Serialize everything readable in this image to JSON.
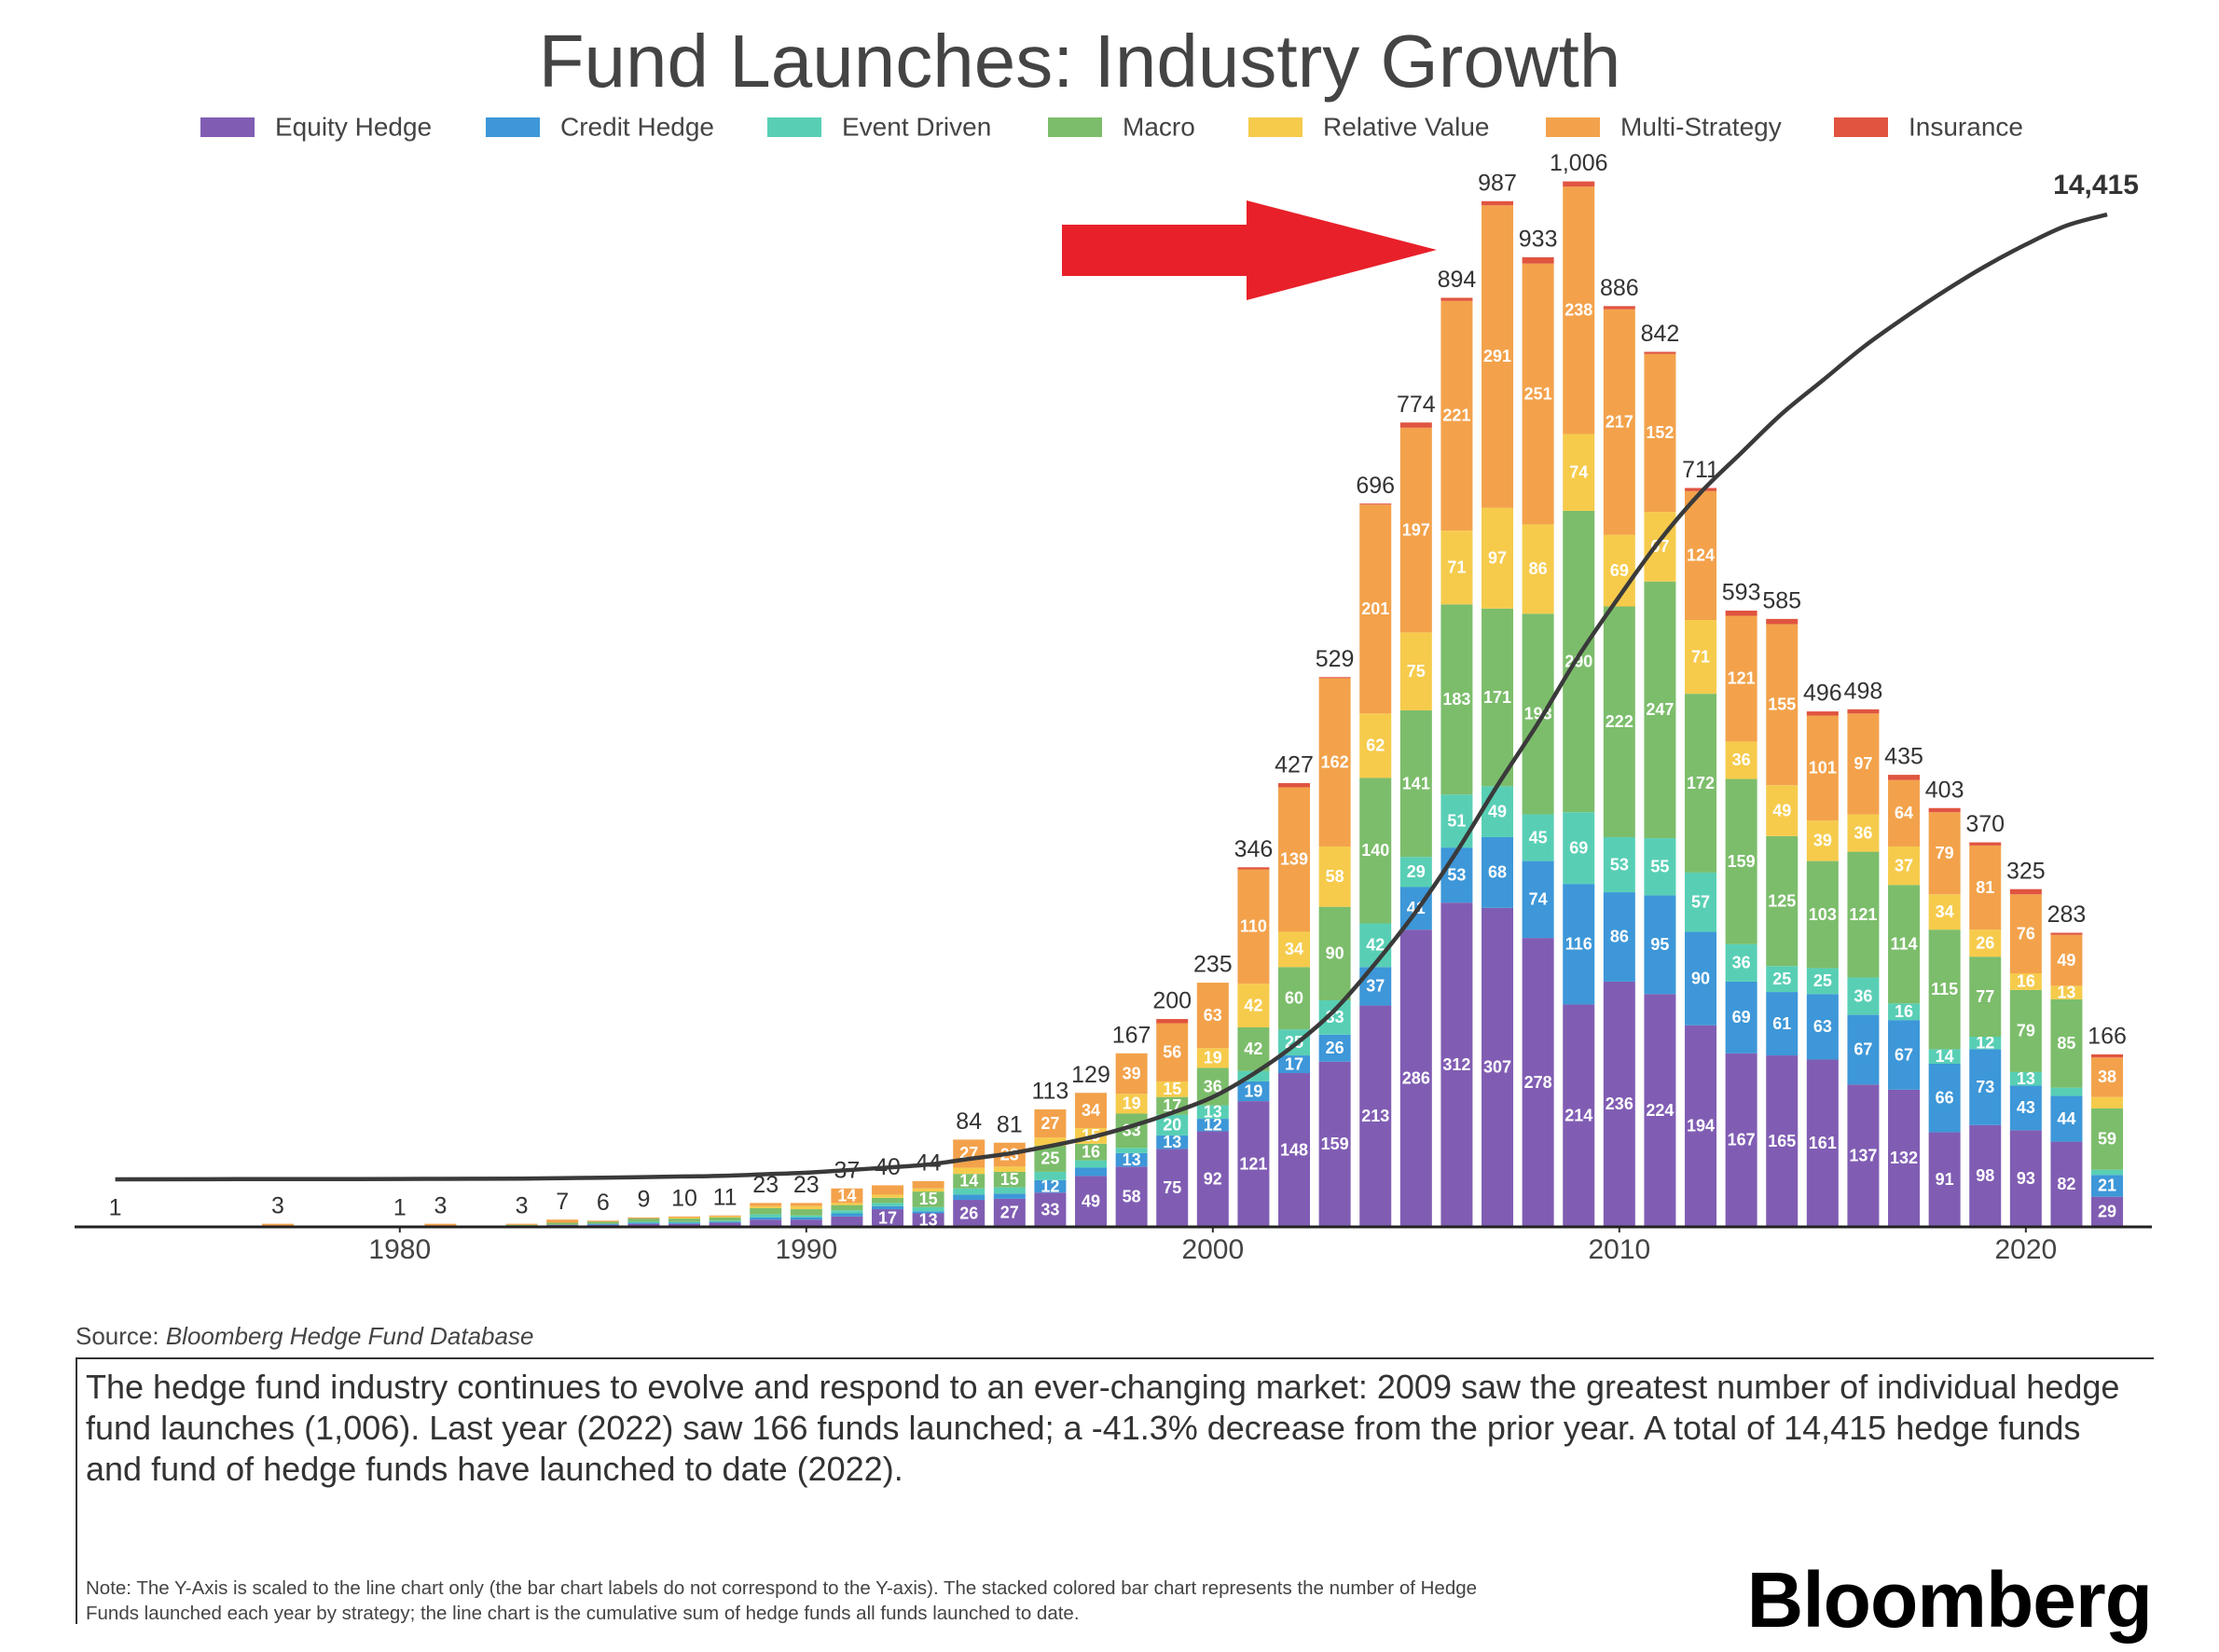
{
  "chart_data": {
    "type": "bar",
    "stacked": true,
    "title": "Fund Launches: Industry Growth",
    "legend_position": "top",
    "x": [
      1973,
      1977,
      1980,
      1981,
      1983,
      1984,
      1985,
      1986,
      1987,
      1988,
      1989,
      1990,
      1991,
      1992,
      1993,
      1994,
      1995,
      1996,
      1997,
      1998,
      1999,
      2000,
      2001,
      2002,
      2003,
      2004,
      2005,
      2006,
      2007,
      2008,
      2009,
      2010,
      2011,
      2012,
      2013,
      2014,
      2015,
      2016,
      2017,
      2018,
      2019,
      2020,
      2021,
      2022
    ],
    "xlim": [
      1972,
      2023.1
    ],
    "xticks": [
      1980,
      1990,
      2000,
      2010,
      2020
    ],
    "ylim": [
      0,
      1046
    ],
    "y2lim": [
      -710,
      15530
    ],
    "series": [
      {
        "name": "Equity Hedge",
        "color": "#805db3",
        "values": [
          1,
          0,
          1,
          0,
          1,
          2,
          2,
          3,
          3,
          4,
          7,
          7,
          10,
          17,
          13,
          26,
          27,
          33,
          49,
          58,
          75,
          92,
          121,
          148,
          159,
          213,
          286,
          312,
          307,
          278,
          214,
          236,
          224,
          194,
          167,
          165,
          161,
          137,
          132,
          91,
          98,
          93,
          82,
          29
        ]
      },
      {
        "name": "Credit Hedge",
        "color": "#3d97d8",
        "values": [
          0,
          0,
          0,
          0,
          0,
          0,
          1,
          1,
          1,
          1,
          2,
          2,
          3,
          3,
          2,
          5,
          5,
          12,
          8,
          13,
          13,
          12,
          19,
          17,
          26,
          37,
          41,
          53,
          68,
          74,
          116,
          86,
          95,
          90,
          69,
          61,
          63,
          67,
          67,
          66,
          73,
          43,
          44,
          21
        ]
      },
      {
        "name": "Event Driven",
        "color": "#58cfb5",
        "values": [
          0,
          0,
          0,
          0,
          0,
          0,
          0,
          1,
          1,
          1,
          3,
          2,
          3,
          3,
          4,
          6,
          6,
          8,
          7,
          5,
          20,
          13,
          10,
          25,
          33,
          42,
          29,
          51,
          49,
          45,
          69,
          53,
          55,
          57,
          36,
          25,
          25,
          36,
          16,
          14,
          12,
          13,
          8,
          5
        ]
      },
      {
        "name": "Macro",
        "color": "#7cbd6b",
        "values": [
          0,
          0,
          0,
          0,
          1,
          2,
          2,
          3,
          3,
          3,
          6,
          6,
          5,
          5,
          15,
          14,
          15,
          25,
          16,
          33,
          17,
          36,
          42,
          60,
          90,
          140,
          141,
          183,
          171,
          193,
          290,
          222,
          247,
          172,
          159,
          125,
          103,
          121,
          114,
          115,
          77,
          79,
          85,
          59
        ]
      },
      {
        "name": "Relative Value",
        "color": "#f6cb4c",
        "values": [
          0,
          0,
          0,
          0,
          0,
          0,
          0,
          0,
          1,
          1,
          2,
          3,
          2,
          3,
          3,
          6,
          5,
          8,
          15,
          19,
          15,
          19,
          42,
          34,
          58,
          62,
          75,
          71,
          97,
          86,
          74,
          69,
          67,
          71,
          36,
          49,
          39,
          36,
          37,
          34,
          26,
          16,
          13,
          11
        ]
      },
      {
        "name": "Multi-Strategy",
        "color": "#f3a24b",
        "values": [
          0,
          3,
          0,
          3,
          1,
          3,
          1,
          1,
          1,
          1,
          3,
          3,
          14,
          9,
          7,
          27,
          23,
          27,
          34,
          39,
          56,
          63,
          110,
          139,
          162,
          201,
          197,
          221,
          291,
          251,
          238,
          217,
          152,
          124,
          121,
          155,
          101,
          97,
          64,
          79,
          81,
          76,
          49,
          38
        ]
      },
      {
        "name": "Insurance",
        "color": "#e05440",
        "values": [
          0,
          0,
          0,
          0,
          0,
          0,
          0,
          0,
          0,
          0,
          0,
          0,
          0,
          0,
          0,
          0,
          0,
          0,
          0,
          0,
          4,
          0,
          2,
          4,
          1,
          1,
          5,
          3,
          4,
          6,
          5,
          3,
          2,
          3,
          5,
          5,
          4,
          4,
          5,
          4,
          3,
          5,
          2,
          3
        ]
      },
      {
        "type": "line",
        "axis": "y2",
        "color": "#3a3a3a",
        "values": [
          1,
          4,
          5,
          8,
          11,
          18,
          24,
          33,
          43,
          54,
          77,
          100,
          137,
          177,
          221,
          305,
          386,
          499,
          628,
          795,
          995,
          1230,
          1576,
          2003,
          2532,
          3228,
          4002,
          4896,
          5883,
          6816,
          7822,
          8708,
          9550,
          10261,
          10854,
          11439,
          11935,
          12433,
          12868,
          13271,
          13641,
          13966,
          14249,
          14415
        ],
        "value_labels": [
          null,
          null,
          null,
          null,
          null,
          null,
          null,
          null,
          null,
          null,
          null,
          null,
          null,
          null,
          null,
          null,
          null,
          null,
          null,
          null,
          null,
          null,
          null,
          null,
          null,
          null,
          null,
          null,
          null,
          null,
          null,
          null,
          null,
          null,
          null,
          null,
          null,
          null,
          null,
          null,
          null,
          null,
          null,
          "14,415"
        ]
      }
    ],
    "totals": {
      "values": [
        1,
        3,
        1,
        3,
        3,
        7,
        6,
        9,
        10,
        11,
        23,
        23,
        37,
        40,
        44,
        84,
        81,
        113,
        129,
        167,
        200,
        235,
        346,
        427,
        529,
        696,
        774,
        894,
        987,
        933,
        1006,
        886,
        842,
        711,
        593,
        585,
        496,
        498,
        435,
        403,
        370,
        325,
        283,
        166
      ],
      "value_labels": [
        null,
        null,
        null,
        null,
        null,
        null,
        null,
        null,
        null,
        null,
        null,
        null,
        null,
        null,
        null,
        null,
        null,
        null,
        null,
        null,
        null,
        null,
        null,
        null,
        null,
        null,
        null,
        null,
        null,
        null,
        "1,006",
        null,
        null,
        null,
        null,
        null,
        null,
        null,
        null,
        null,
        null,
        null,
        null,
        null
      ]
    },
    "source_prefix": "Source:",
    "source": "Bloomberg Hedge Fund Database",
    "description": "The hedge fund industry continues to evolve and respond to an ever-changing market: 2009 saw the greatest number of individual hedge fund launches (1,006). Last year (2022) saw 166 funds launched; a -41.3% decrease from the prior year. A total of 14,415 hedge funds and fund of hedge funds have launched to date (2022).",
    "note": "Note: The Y-Axis is scaled to the line chart only (the bar chart labels do not correspond to the Y-axis). The stacked colored bar chart represents the number of Hedge Funds launched each year by strategy; the line chart is the cumulative sum of hedge funds all funds launched to date.",
    "brand": "Bloomberg"
  }
}
